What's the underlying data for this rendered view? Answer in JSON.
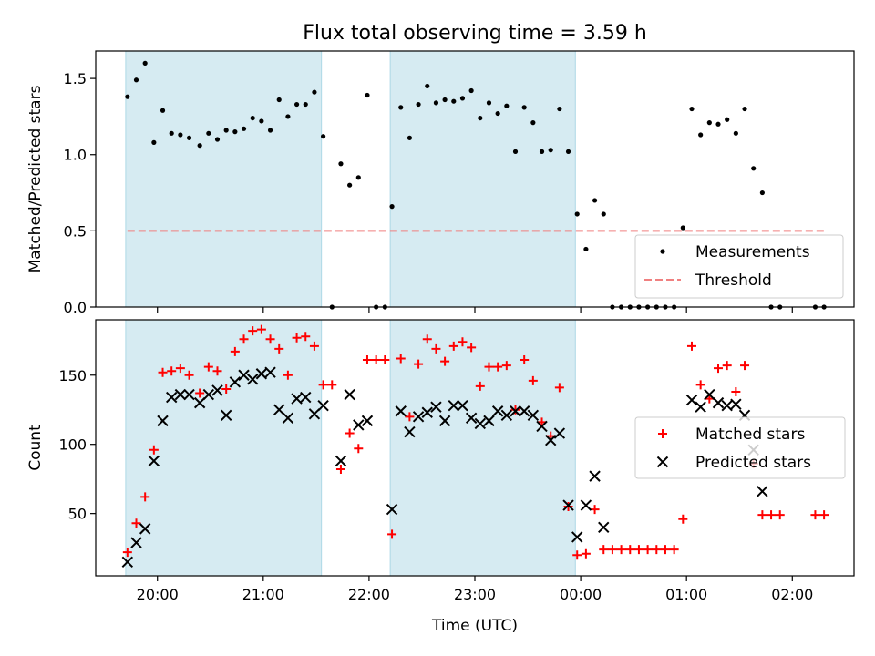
{
  "title": "Flux total observing time = 3.59 h",
  "xlabel": "Time (UTC)",
  "x_ticks": [
    "20:00",
    "21:00",
    "22:00",
    "23:00",
    "00:00",
    "01:00",
    "02:00"
  ],
  "colors": {
    "shade": "#add8e6",
    "measurement": "#000000",
    "threshold": "#f08080",
    "matched": "#ff0000",
    "predicted": "#000000"
  },
  "chart_data": [
    {
      "type": "scatter",
      "title": "Flux total observing time = 3.59 h",
      "ylabel": "Matched/Predicted stars",
      "xlim": [
        "19:25",
        "02:35"
      ],
      "ylim": [
        0,
        1.68
      ],
      "y_ticks": [
        "0.0",
        "0.5",
        "1.0",
        "1.5"
      ],
      "shaded_intervals": [
        [
          "19:42",
          "21:33"
        ],
        [
          "22:12",
          "23:57"
        ]
      ],
      "legend_position": "lower right",
      "series": [
        {
          "name": "Measurements",
          "marker": "dot",
          "points": [
            [
              "19:43",
              1.38
            ],
            [
              "19:48",
              1.49
            ],
            [
              "19:53",
              1.6
            ],
            [
              "19:58",
              1.08
            ],
            [
              "20:03",
              1.29
            ],
            [
              "20:08",
              1.14
            ],
            [
              "20:13",
              1.13
            ],
            [
              "20:18",
              1.11
            ],
            [
              "20:24",
              1.06
            ],
            [
              "20:29",
              1.14
            ],
            [
              "20:34",
              1.1
            ],
            [
              "20:39",
              1.16
            ],
            [
              "20:44",
              1.15
            ],
            [
              "20:49",
              1.17
            ],
            [
              "20:54",
              1.24
            ],
            [
              "20:59",
              1.22
            ],
            [
              "21:04",
              1.16
            ],
            [
              "21:09",
              1.36
            ],
            [
              "21:14",
              1.25
            ],
            [
              "21:19",
              1.33
            ],
            [
              "21:24",
              1.33
            ],
            [
              "21:29",
              1.41
            ],
            [
              "21:34",
              1.12
            ],
            [
              "21:39",
              0.0
            ],
            [
              "21:44",
              0.94
            ],
            [
              "21:49",
              0.8
            ],
            [
              "21:54",
              0.85
            ],
            [
              "21:59",
              1.39
            ],
            [
              "22:04",
              0.0
            ],
            [
              "22:09",
              0.0
            ],
            [
              "22:13",
              0.66
            ],
            [
              "22:18",
              1.31
            ],
            [
              "22:23",
              1.11
            ],
            [
              "22:28",
              1.33
            ],
            [
              "22:33",
              1.45
            ],
            [
              "22:38",
              1.34
            ],
            [
              "22:43",
              1.36
            ],
            [
              "22:48",
              1.35
            ],
            [
              "22:53",
              1.37
            ],
            [
              "22:58",
              1.42
            ],
            [
              "23:03",
              1.24
            ],
            [
              "23:08",
              1.34
            ],
            [
              "23:13",
              1.27
            ],
            [
              "23:18",
              1.32
            ],
            [
              "23:23",
              1.02
            ],
            [
              "23:28",
              1.31
            ],
            [
              "23:33",
              1.21
            ],
            [
              "23:38",
              1.02
            ],
            [
              "23:43",
              1.03
            ],
            [
              "23:48",
              1.3
            ],
            [
              "23:53",
              1.02
            ],
            [
              "23:58",
              0.61
            ],
            [
              "00:03",
              0.38
            ],
            [
              "00:08",
              0.7
            ],
            [
              "00:13",
              0.61
            ],
            [
              "00:18",
              0.0
            ],
            [
              "00:23",
              0.0
            ],
            [
              "00:28",
              0.0
            ],
            [
              "00:33",
              0.0
            ],
            [
              "00:38",
              0.0
            ],
            [
              "00:43",
              0.0
            ],
            [
              "00:48",
              0.0
            ],
            [
              "00:53",
              0.0
            ],
            [
              "00:58",
              0.52
            ],
            [
              "01:03",
              1.3
            ],
            [
              "01:08",
              1.13
            ],
            [
              "01:13",
              1.21
            ],
            [
              "01:18",
              1.2
            ],
            [
              "01:23",
              1.23
            ],
            [
              "01:28",
              1.14
            ],
            [
              "01:33",
              1.3
            ],
            [
              "01:38",
              0.91
            ],
            [
              "01:43",
              0.75
            ],
            [
              "01:48",
              0.0
            ],
            [
              "01:53",
              0.0
            ],
            [
              "02:13",
              0.0
            ],
            [
              "02:18",
              0.0
            ]
          ]
        },
        {
          "name": "Threshold",
          "style": "dashed",
          "points": [
            [
              "19:43",
              0.5
            ],
            [
              "02:18",
              0.5
            ]
          ]
        }
      ]
    },
    {
      "type": "scatter",
      "ylabel": "Count",
      "xlabel": "Time (UTC)",
      "xlim": [
        "19:25",
        "02:35"
      ],
      "ylim": [
        5,
        190
      ],
      "y_ticks": [
        "50",
        "100",
        "150"
      ],
      "shaded_intervals": [
        [
          "19:42",
          "21:33"
        ],
        [
          "22:12",
          "23:57"
        ]
      ],
      "legend_position": "right",
      "series": [
        {
          "name": "Matched stars",
          "marker": "plus",
          "points": [
            [
              "19:43",
              22
            ],
            [
              "19:48",
              43
            ],
            [
              "19:53",
              62
            ],
            [
              "19:58",
              96
            ],
            [
              "20:03",
              152
            ],
            [
              "20:08",
              153
            ],
            [
              "20:13",
              155
            ],
            [
              "20:18",
              150
            ],
            [
              "20:24",
              137
            ],
            [
              "20:29",
              156
            ],
            [
              "20:34",
              153
            ],
            [
              "20:39",
              140
            ],
            [
              "20:44",
              167
            ],
            [
              "20:49",
              176
            ],
            [
              "20:54",
              182
            ],
            [
              "20:59",
              183
            ],
            [
              "21:04",
              176
            ],
            [
              "21:09",
              169
            ],
            [
              "21:14",
              150
            ],
            [
              "21:19",
              177
            ],
            [
              "21:24",
              178
            ],
            [
              "21:29",
              171
            ],
            [
              "21:34",
              143
            ],
            [
              "21:39",
              143
            ],
            [
              "21:44",
              82
            ],
            [
              "21:49",
              108
            ],
            [
              "21:54",
              97
            ],
            [
              "21:59",
              161
            ],
            [
              "22:04",
              161
            ],
            [
              "22:09",
              161
            ],
            [
              "22:13",
              35
            ],
            [
              "22:18",
              162
            ],
            [
              "22:23",
              120
            ],
            [
              "22:28",
              158
            ],
            [
              "22:33",
              176
            ],
            [
              "22:38",
              169
            ],
            [
              "22:43",
              160
            ],
            [
              "22:48",
              171
            ],
            [
              "22:53",
              174
            ],
            [
              "22:58",
              170
            ],
            [
              "23:03",
              142
            ],
            [
              "23:08",
              156
            ],
            [
              "23:13",
              156
            ],
            [
              "23:18",
              157
            ],
            [
              "23:23",
              125
            ],
            [
              "23:28",
              161
            ],
            [
              "23:33",
              146
            ],
            [
              "23:38",
              116
            ],
            [
              "23:43",
              106
            ],
            [
              "23:48",
              141
            ],
            [
              "23:53",
              55
            ],
            [
              "23:58",
              20
            ],
            [
              "00:03",
              21
            ],
            [
              "00:08",
              53
            ],
            [
              "00:13",
              24
            ],
            [
              "00:18",
              24
            ],
            [
              "00:23",
              24
            ],
            [
              "00:28",
              24
            ],
            [
              "00:33",
              24
            ],
            [
              "00:38",
              24
            ],
            [
              "00:43",
              24
            ],
            [
              "00:48",
              24
            ],
            [
              "00:53",
              24
            ],
            [
              "00:58",
              46
            ],
            [
              "01:03",
              171
            ],
            [
              "01:08",
              143
            ],
            [
              "01:13",
              133
            ],
            [
              "01:18",
              155
            ],
            [
              "01:23",
              157
            ],
            [
              "01:28",
              138
            ],
            [
              "01:33",
              157
            ],
            [
              "01:38",
              86
            ],
            [
              "01:43",
              49
            ],
            [
              "01:48",
              49
            ],
            [
              "01:53",
              49
            ],
            [
              "02:13",
              49
            ],
            [
              "02:18",
              49
            ]
          ]
        },
        {
          "name": "Predicted stars",
          "marker": "x",
          "points": [
            [
              "19:43",
              15
            ],
            [
              "19:48",
              29
            ],
            [
              "19:53",
              39
            ],
            [
              "19:58",
              88
            ],
            [
              "20:03",
              117
            ],
            [
              "20:08",
              134
            ],
            [
              "20:13",
              136
            ],
            [
              "20:18",
              136
            ],
            [
              "20:24",
              130
            ],
            [
              "20:29",
              136
            ],
            [
              "20:34",
              139
            ],
            [
              "20:39",
              121
            ],
            [
              "20:44",
              145
            ],
            [
              "20:49",
              150
            ],
            [
              "20:54",
              147
            ],
            [
              "20:59",
              151
            ],
            [
              "21:04",
              152
            ],
            [
              "21:09",
              125
            ],
            [
              "21:14",
              119
            ],
            [
              "21:19",
              133
            ],
            [
              "21:24",
              134
            ],
            [
              "21:29",
              122
            ],
            [
              "21:34",
              128
            ],
            [
              "21:44",
              88
            ],
            [
              "21:49",
              136
            ],
            [
              "21:54",
              114
            ],
            [
              "21:59",
              117
            ],
            [
              "22:13",
              53
            ],
            [
              "22:18",
              124
            ],
            [
              "22:23",
              109
            ],
            [
              "22:28",
              120
            ],
            [
              "22:33",
              123
            ],
            [
              "22:38",
              127
            ],
            [
              "22:43",
              117
            ],
            [
              "22:48",
              128
            ],
            [
              "22:53",
              128
            ],
            [
              "22:58",
              119
            ],
            [
              "23:03",
              115
            ],
            [
              "23:08",
              117
            ],
            [
              "23:13",
              124
            ],
            [
              "23:18",
              121
            ],
            [
              "23:23",
              124
            ],
            [
              "23:28",
              124
            ],
            [
              "23:33",
              121
            ],
            [
              "23:38",
              113
            ],
            [
              "23:43",
              103
            ],
            [
              "23:48",
              108
            ],
            [
              "23:53",
              56
            ],
            [
              "23:58",
              33
            ],
            [
              "00:03",
              56
            ],
            [
              "00:08",
              77
            ],
            [
              "00:13",
              40
            ],
            [
              "01:03",
              132
            ],
            [
              "01:08",
              127
            ],
            [
              "01:13",
              136
            ],
            [
              "01:18",
              130
            ],
            [
              "01:23",
              128
            ],
            [
              "01:28",
              129
            ],
            [
              "01:33",
              121
            ],
            [
              "01:38",
              96
            ],
            [
              "01:43",
              66
            ]
          ]
        }
      ]
    }
  ]
}
